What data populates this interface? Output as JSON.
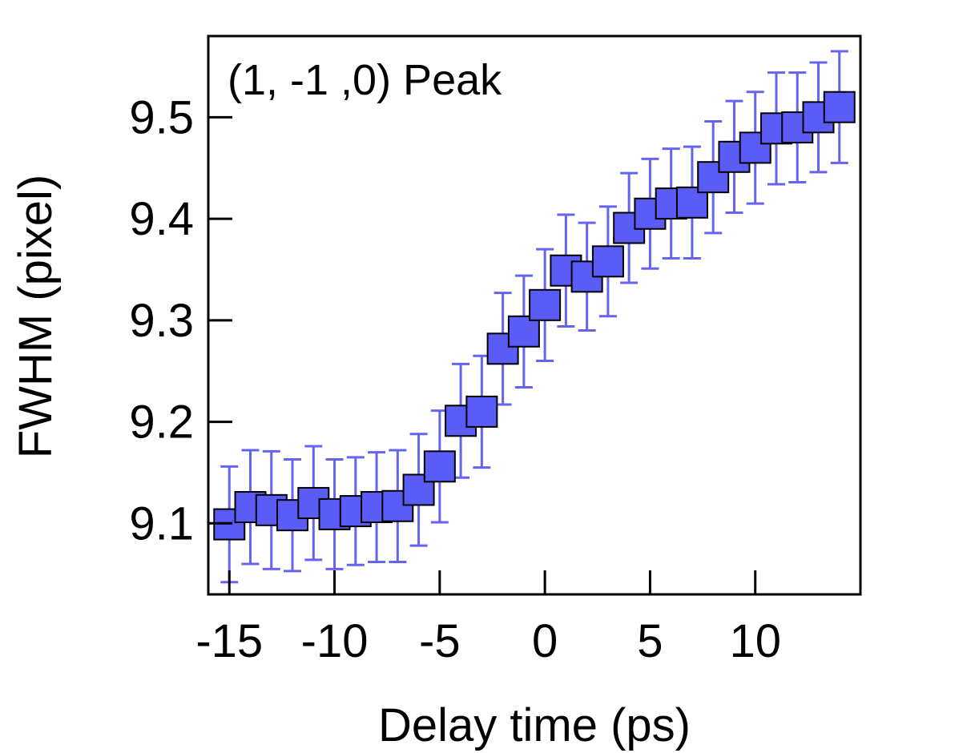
{
  "chart_data": {
    "type": "scatter",
    "annotation": "(1, -1 ,0) Peak",
    "xlabel": "Delay time (ps)",
    "ylabel": "FWHM (pixel)",
    "xlim": [
      -16,
      15
    ],
    "ylim": [
      9.03,
      9.58
    ],
    "xticks": [
      -15,
      -10,
      -5,
      0,
      5,
      10
    ],
    "xtick_labels": [
      "-15",
      "-10",
      "-5",
      "0",
      "5",
      "10"
    ],
    "yticks": [
      9.1,
      9.2,
      9.3,
      9.4,
      9.5
    ],
    "ytick_labels": [
      "9.1",
      "9.2",
      "9.3",
      "9.4",
      "9.5"
    ],
    "grid": false,
    "marker": "square",
    "marker_color": "#5b5bf5",
    "errorbar_color": "#6464ee",
    "series": [
      {
        "x": [
          -15,
          -14,
          -13,
          -12,
          -11,
          -10,
          -9,
          -8,
          -7,
          -6,
          -5,
          -4,
          -3,
          -2,
          -1,
          0,
          1,
          2,
          3,
          4,
          5,
          6,
          7,
          8,
          9,
          10,
          11,
          12,
          13,
          14
        ],
        "y": [
          9.099,
          9.116,
          9.113,
          9.108,
          9.12,
          9.109,
          9.112,
          9.116,
          9.117,
          9.133,
          9.156,
          9.201,
          9.21,
          9.272,
          9.289,
          9.315,
          9.349,
          9.343,
          9.358,
          9.391,
          9.405,
          9.415,
          9.416,
          9.441,
          9.461,
          9.47,
          9.489,
          9.49,
          9.5,
          9.51
        ],
        "err": [
          0.057,
          0.056,
          0.058,
          0.055,
          0.056,
          0.054,
          0.053,
          0.054,
          0.055,
          0.055,
          0.055,
          0.056,
          0.055,
          0.055,
          0.055,
          0.055,
          0.055,
          0.053,
          0.054,
          0.054,
          0.054,
          0.054,
          0.055,
          0.055,
          0.055,
          0.055,
          0.055,
          0.054,
          0.054,
          0.055
        ]
      }
    ]
  }
}
